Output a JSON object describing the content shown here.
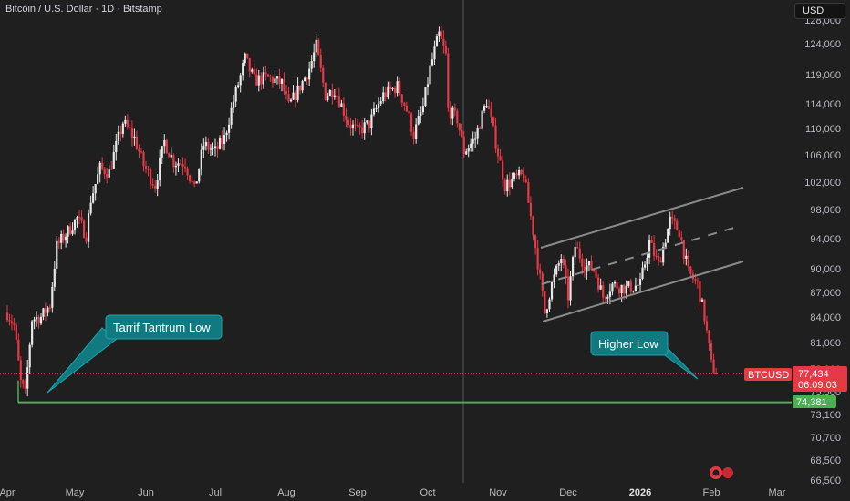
{
  "header": {
    "title": "Bitcoin / U.S. Dollar · 1D · Bitstamp",
    "currency_button": "USD"
  },
  "colors": {
    "background": "#1f1f1f",
    "up": "#e8e8e8",
    "down": "#e53946",
    "support": "#4caf50",
    "callout": "#117a80",
    "channel": "#8a8a8a",
    "price_tag": "#e53946"
  },
  "chart_data": {
    "type": "candlestick",
    "symbol": "BTCUSD",
    "y_ticks": [
      "66,500",
      "68,500",
      "70,700",
      "73,100",
      "75,500",
      "78,000",
      "81,000",
      "84,000",
      "87,000",
      "90,000",
      "94,000",
      "98,000",
      "102,000",
      "106,000",
      "110,000",
      "114,000",
      "119,000",
      "124,000",
      "128,000"
    ],
    "x_ticks": [
      {
        "label": "Apr",
        "bold": false
      },
      {
        "label": "May",
        "bold": false
      },
      {
        "label": "Jun",
        "bold": false
      },
      {
        "label": "Jul",
        "bold": false
      },
      {
        "label": "Aug",
        "bold": false
      },
      {
        "label": "Sep",
        "bold": false
      },
      {
        "label": "Oct",
        "bold": false
      },
      {
        "label": "Nov",
        "bold": false
      },
      {
        "label": "Dec",
        "bold": false
      },
      {
        "label": "2026",
        "bold": true
      },
      {
        "label": "Feb",
        "bold": false
      },
      {
        "label": "Mar",
        "bold": false
      }
    ],
    "price_path": [
      [
        "2025-04-01",
        84500
      ],
      [
        "2025-04-04",
        83000
      ],
      [
        "2025-04-07",
        76500
      ],
      [
        "2025-04-09",
        75200
      ],
      [
        "2025-04-12",
        83800
      ],
      [
        "2025-04-16",
        84000
      ],
      [
        "2025-04-20",
        85500
      ],
      [
        "2025-04-23",
        93000
      ],
      [
        "2025-04-28",
        95000
      ],
      [
        "2025-05-02",
        96800
      ],
      [
        "2025-05-06",
        94500
      ],
      [
        "2025-05-08",
        99500
      ],
      [
        "2025-05-12",
        104000
      ],
      [
        "2025-05-16",
        103500
      ],
      [
        "2025-05-22",
        111000
      ],
      [
        "2025-05-27",
        108500
      ],
      [
        "2025-05-31",
        104500
      ],
      [
        "2025-06-05",
        101500
      ],
      [
        "2025-06-09",
        108000
      ],
      [
        "2025-06-13",
        105000
      ],
      [
        "2025-06-18",
        104800
      ],
      [
        "2025-06-22",
        100800
      ],
      [
        "2025-06-26",
        107500
      ],
      [
        "2025-07-01",
        106500
      ],
      [
        "2025-07-05",
        108500
      ],
      [
        "2025-07-10",
        116000
      ],
      [
        "2025-07-14",
        121500
      ],
      [
        "2025-07-18",
        118000
      ],
      [
        "2025-07-24",
        118500
      ],
      [
        "2025-07-30",
        117500
      ],
      [
        "2025-08-02",
        113500
      ],
      [
        "2025-08-07",
        117000
      ],
      [
        "2025-08-11",
        120000
      ],
      [
        "2025-08-14",
        123500
      ],
      [
        "2025-08-18",
        115500
      ],
      [
        "2025-08-22",
        116500
      ],
      [
        "2025-08-28",
        111000
      ],
      [
        "2025-09-01",
        109500
      ],
      [
        "2025-09-06",
        110800
      ],
      [
        "2025-09-12",
        115500
      ],
      [
        "2025-09-18",
        117000
      ],
      [
        "2025-09-22",
        113000
      ],
      [
        "2025-09-25",
        109000
      ],
      [
        "2025-09-29",
        113500
      ],
      [
        "2025-10-02",
        120000
      ],
      [
        "2025-10-06",
        125500
      ],
      [
        "2025-10-09",
        122000
      ],
      [
        "2025-10-10",
        113000
      ],
      [
        "2025-10-14",
        111500
      ],
      [
        "2025-10-17",
        106500
      ],
      [
        "2025-10-22",
        108500
      ],
      [
        "2025-10-27",
        114500
      ],
      [
        "2025-10-30",
        109500
      ],
      [
        "2025-11-04",
        101500
      ],
      [
        "2025-11-08",
        102500
      ],
      [
        "2025-11-12",
        103000
      ],
      [
        "2025-11-16",
        95000
      ],
      [
        "2025-11-21",
        84500
      ],
      [
        "2025-11-24",
        88000
      ],
      [
        "2025-11-28",
        91500
      ],
      [
        "2025-12-01",
        86500
      ],
      [
        "2025-12-04",
        93000
      ],
      [
        "2025-12-08",
        90500
      ],
      [
        "2025-12-12",
        90000
      ],
      [
        "2025-12-16",
        86500
      ],
      [
        "2025-12-20",
        88000
      ],
      [
        "2025-12-26",
        87500
      ],
      [
        "2026-01-01",
        88000
      ],
      [
        "2026-01-05",
        93500
      ],
      [
        "2026-01-09",
        90500
      ],
      [
        "2026-01-14",
        96500
      ],
      [
        "2026-01-18",
        95000
      ],
      [
        "2026-01-22",
        89500
      ],
      [
        "2026-01-26",
        88000
      ],
      [
        "2026-01-29",
        84000
      ],
      [
        "2026-02-01",
        78500
      ],
      [
        "2026-02-03",
        77434
      ]
    ],
    "price_line": {
      "symbol": "BTCUSD",
      "price": "77,434",
      "countdown": "06:09:03"
    },
    "support_level": {
      "price": "74,381",
      "value": 74381
    },
    "annotations": [
      {
        "text": "Tarrif Tantrum Low"
      },
      {
        "text": "Higher Low"
      }
    ]
  }
}
